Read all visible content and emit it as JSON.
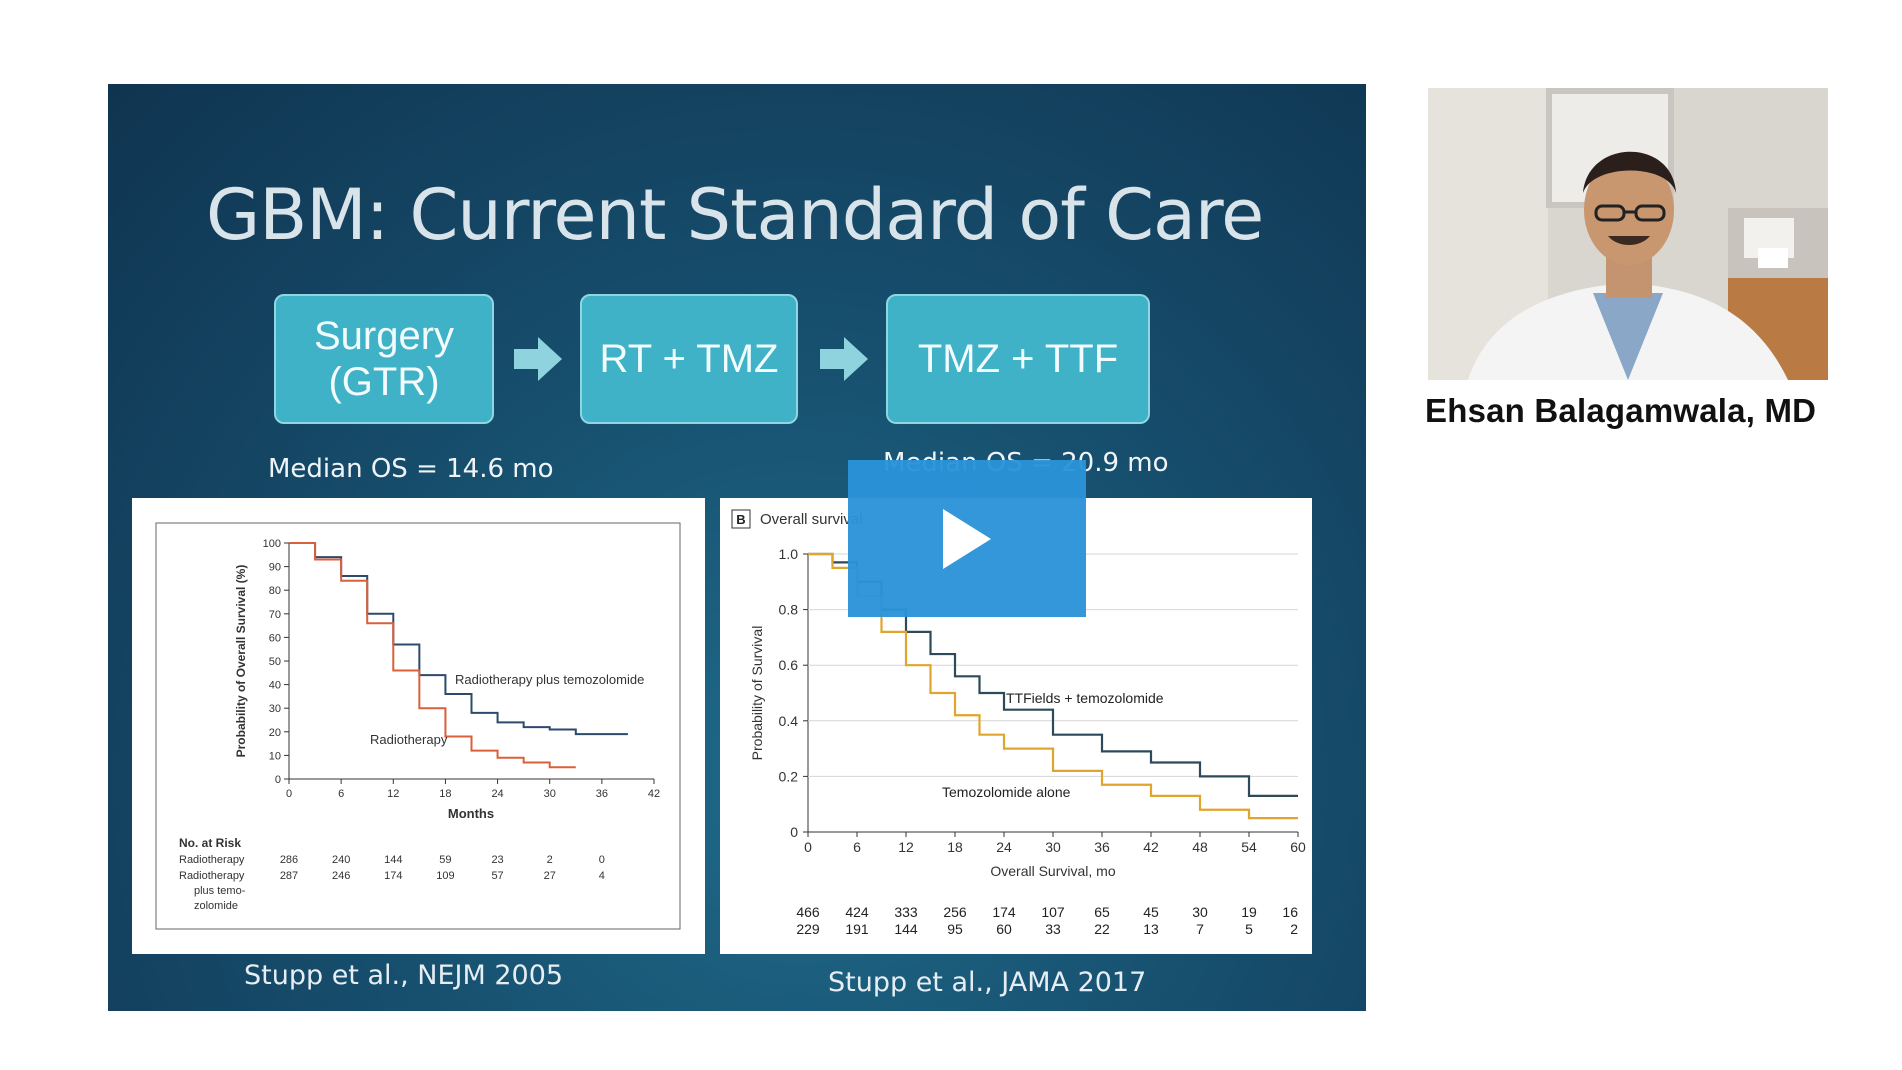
{
  "slide": {
    "title": "GBM: Current Standard of Care",
    "flow": [
      "Surgery\n(GTR)",
      "RT + TMZ",
      "TMZ + TTF"
    ],
    "median_left": "Median OS = 14.6 mo",
    "median_right": "Median OS = 20.9 mo",
    "citation_left": "Stupp et al., NEJM 2005",
    "citation_right": "Stupp et al., JAMA 2017",
    "colors": {
      "background": "#174f6e",
      "flow_box": "#3fb2c7",
      "play_button": "#2b93d9"
    }
  },
  "play_button": {
    "icon": "play-icon"
  },
  "presenter": {
    "name": "Ehsan Balagamwala, MD"
  },
  "chart_data": [
    {
      "type": "line",
      "ylabel": "Probability of Overall Survival (%)",
      "xlabel": "Months",
      "xlim": [
        0,
        42
      ],
      "ylim": [
        0,
        100
      ],
      "xticks": [
        0,
        6,
        12,
        18,
        24,
        30,
        36,
        42
      ],
      "yticks": [
        0,
        10,
        20,
        30,
        40,
        50,
        60,
        70,
        80,
        90,
        100
      ],
      "series": [
        {
          "name": "Radiotherapy plus temozolomide",
          "color": "#2c4a6b",
          "x": [
            0,
            3,
            6,
            9,
            12,
            15,
            18,
            21,
            24,
            27,
            30,
            33,
            36,
            39
          ],
          "y": [
            100,
            94,
            86,
            70,
            57,
            44,
            36,
            28,
            24,
            22,
            21,
            19,
            19,
            19
          ]
        },
        {
          "name": "Radiotherapy",
          "color": "#d9603b",
          "x": [
            0,
            3,
            6,
            9,
            12,
            15,
            18,
            21,
            24,
            27,
            30,
            33
          ],
          "y": [
            100,
            93,
            84,
            66,
            46,
            30,
            18,
            12,
            9,
            7,
            5,
            5
          ]
        }
      ],
      "risk_table": {
        "header": "No. at Risk",
        "rows": [
          {
            "label": "Radiotherapy",
            "values": [
              "286",
              "240",
              "144",
              "59",
              "23",
              "2",
              "0"
            ]
          },
          {
            "label": "Radiotherapy\nplus temo-\nzolomide",
            "values": [
              "287",
              "246",
              "174",
              "109",
              "57",
              "27",
              "4"
            ]
          }
        ]
      }
    },
    {
      "type": "line",
      "title": "Overall survival",
      "panel_label": "B",
      "ylabel": "Probability of Survival",
      "xlabel": "Overall Survival, mo",
      "xlim": [
        0,
        60
      ],
      "ylim": [
        0,
        1.0
      ],
      "xticks": [
        0,
        6,
        12,
        18,
        24,
        30,
        36,
        42,
        48,
        54,
        60
      ],
      "yticks": [
        "0",
        "0.2",
        "0.4",
        "0.6",
        "0.8",
        "1.0"
      ],
      "series": [
        {
          "name": "TTFields + temozolomide",
          "color": "#2c4a5a",
          "x": [
            0,
            3,
            6,
            9,
            12,
            15,
            18,
            21,
            24,
            30,
            36,
            42,
            48,
            54,
            60
          ],
          "y": [
            1.0,
            0.97,
            0.9,
            0.8,
            0.72,
            0.64,
            0.56,
            0.5,
            0.44,
            0.35,
            0.29,
            0.25,
            0.2,
            0.13,
            0.13
          ]
        },
        {
          "name": "Temozolomide alone",
          "color": "#e0a52c",
          "x": [
            0,
            3,
            6,
            9,
            12,
            15,
            18,
            21,
            24,
            30,
            36,
            42,
            48,
            54,
            60
          ],
          "y": [
            1.0,
            0.95,
            0.85,
            0.72,
            0.6,
            0.5,
            0.42,
            0.35,
            0.3,
            0.22,
            0.17,
            0.13,
            0.08,
            0.05,
            0.05
          ]
        }
      ],
      "risk_table": {
        "rows": [
          {
            "values": [
              "466",
              "424",
              "333",
              "256",
              "174",
              "107",
              "65",
              "45",
              "30",
              "19",
              "16"
            ]
          },
          {
            "values": [
              "229",
              "191",
              "144",
              "95",
              "60",
              "33",
              "22",
              "13",
              "7",
              "5",
              "2"
            ]
          }
        ]
      }
    }
  ]
}
